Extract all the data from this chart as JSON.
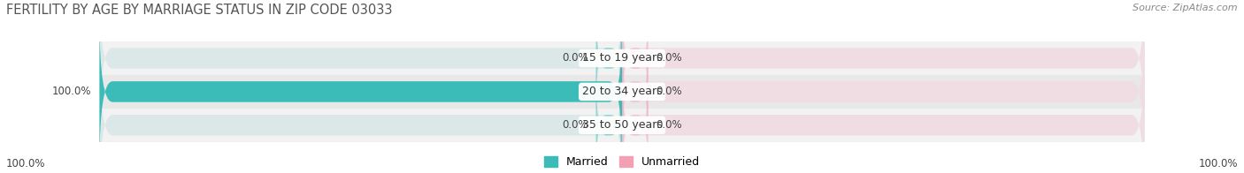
{
  "title": "FERTILITY BY AGE BY MARRIAGE STATUS IN ZIP CODE 03033",
  "source": "Source: ZipAtlas.com",
  "rows": [
    {
      "label": "15 to 19 years",
      "married": 0.0,
      "unmarried": 0.0
    },
    {
      "label": "20 to 34 years",
      "married": 100.0,
      "unmarried": 0.0
    },
    {
      "label": "35 to 50 years",
      "married": 0.0,
      "unmarried": 0.0
    }
  ],
  "married_color": "#3bbcb8",
  "unmarried_color": "#f4a0b4",
  "bar_bg_left_color": "#dce8e8",
  "bar_bg_right_color": "#f0dde4",
  "row_bg_colors": [
    "#f2f2f2",
    "#e8e8e8",
    "#f2f2f2"
  ],
  "bar_height": 0.62,
  "title_fontsize": 10.5,
  "axis_max": 100.0,
  "legend_married": "Married",
  "legend_unmarried": "Unmarried",
  "bottom_left_label": "100.0%",
  "bottom_right_label": "100.0%",
  "value_fontsize": 8.5,
  "label_fontsize": 9.0,
  "source_fontsize": 8.0
}
